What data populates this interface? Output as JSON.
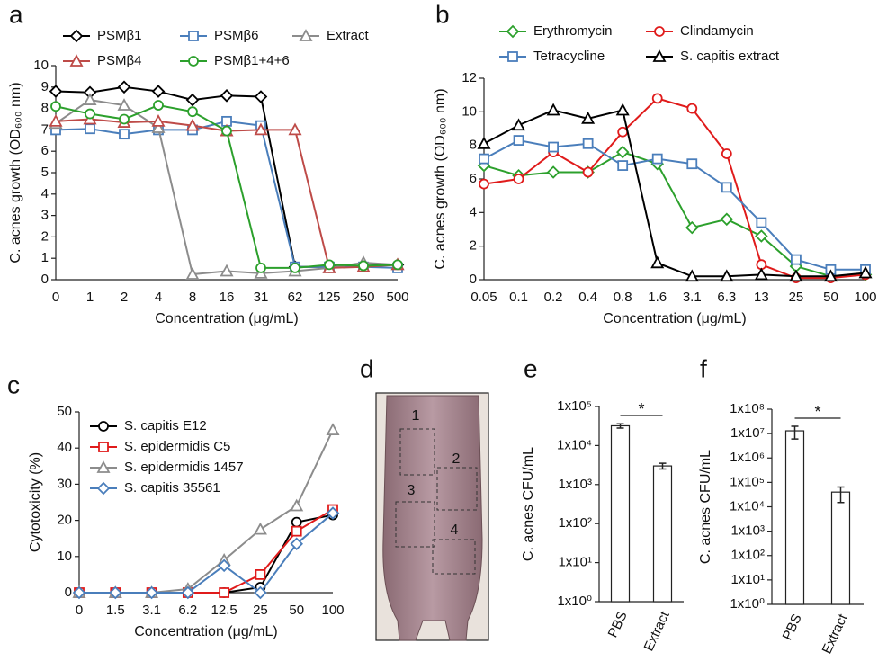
{
  "chart_data": [
    {
      "panel": "a",
      "type": "line",
      "categories": [
        "0",
        "1",
        "2",
        "4",
        "8",
        "16",
        "31",
        "62",
        "125",
        "250",
        "500"
      ],
      "x_label": "Concentration (μg/mL)",
      "y_label": "C. acnes growth (OD₆₀₀ nm)",
      "ylim": [
        0,
        10
      ],
      "yticks": [
        0,
        1,
        2,
        3,
        4,
        5,
        6,
        7,
        8,
        9,
        10
      ],
      "series": [
        {
          "name": "PSMβ1",
          "color": "#000000",
          "marker": "diamond",
          "values": [
            8.8,
            8.75,
            9.0,
            8.8,
            8.4,
            8.6,
            8.55,
            0.6,
            0.6,
            0.65,
            0.7
          ]
        },
        {
          "name": "PSMβ6",
          "color": "#4a7ebb",
          "marker": "square",
          "values": [
            7.0,
            7.05,
            6.8,
            7.0,
            7.0,
            7.4,
            7.2,
            0.6,
            0.6,
            0.6,
            0.55
          ]
        },
        {
          "name": "Extract",
          "color": "#8c8c8c",
          "marker": "triangle",
          "values": [
            7.3,
            8.4,
            8.15,
            7.1,
            0.25,
            0.4,
            0.3,
            0.4,
            0.55,
            0.8,
            0.7
          ]
        },
        {
          "name": "PSMβ4",
          "color": "#be4b48",
          "marker": "triangle",
          "values": [
            7.4,
            7.5,
            7.35,
            7.4,
            7.2,
            6.95,
            7.0,
            7.0,
            0.55,
            0.6,
            0.7
          ]
        },
        {
          "name": "PSMβ1+4+6",
          "color": "#2ca02c",
          "marker": "circle",
          "values": [
            8.1,
            7.75,
            7.5,
            8.15,
            7.85,
            6.95,
            0.55,
            0.55,
            0.7,
            0.65,
            0.7
          ]
        }
      ]
    },
    {
      "panel": "b",
      "type": "line",
      "categories": [
        "0.05",
        "0.1",
        "0.2",
        "0.4",
        "0.8",
        "1.6",
        "3.1",
        "6.3",
        "13",
        "25",
        "50",
        "100"
      ],
      "x_label": "Concentration (μg/mL)",
      "y_label": "C. acnes growth (OD₆₀₀ nm)",
      "ylim": [
        0,
        12
      ],
      "yticks": [
        0,
        2,
        4,
        6,
        8,
        10,
        12
      ],
      "series": [
        {
          "name": "Erythromycin",
          "color": "#2ca02c",
          "marker": "diamond",
          "values": [
            6.8,
            6.2,
            6.4,
            6.4,
            7.6,
            6.9,
            3.1,
            3.6,
            2.6,
            0.8,
            0.2,
            0.3
          ]
        },
        {
          "name": "Clindamycin",
          "color": "#e01b1b",
          "marker": "circle",
          "values": [
            5.7,
            6.0,
            7.6,
            6.4,
            8.8,
            10.8,
            10.2,
            7.5,
            0.9,
            0.1,
            0.1,
            0.3
          ]
        },
        {
          "name": "Tetracycline",
          "color": "#4a7ebb",
          "marker": "square",
          "values": [
            7.2,
            8.3,
            7.9,
            8.1,
            6.8,
            7.2,
            6.9,
            5.5,
            3.4,
            1.2,
            0.6,
            0.6
          ]
        },
        {
          "name": "S. capitis extract",
          "color": "#000000",
          "marker": "triangle",
          "values": [
            8.1,
            9.2,
            10.1,
            9.6,
            10.1,
            1.0,
            0.2,
            0.2,
            0.3,
            0.2,
            0.2,
            0.4
          ]
        }
      ]
    },
    {
      "panel": "c",
      "type": "line",
      "categories": [
        "0",
        "1.5",
        "3.1",
        "6.2",
        "12.5",
        "25",
        "50",
        "100"
      ],
      "x_label": "Concentration (μg/mL)",
      "y_label": "Cytotoxicity (%)",
      "ylim": [
        0,
        50
      ],
      "yticks": [
        0,
        10,
        20,
        30,
        40,
        50
      ],
      "series": [
        {
          "name": "S. capitis E12",
          "color": "#000000",
          "marker": "circle",
          "values": [
            0,
            0,
            0,
            0,
            0,
            1.5,
            19.5,
            21.5
          ]
        },
        {
          "name": "S. epidermidis C5",
          "color": "#e01b1b",
          "marker": "square",
          "values": [
            0,
            0,
            0,
            0,
            0,
            5,
            17,
            23
          ]
        },
        {
          "name": "S. epidermidis 1457",
          "color": "#8c8c8c",
          "marker": "triangle",
          "values": [
            0,
            0,
            0,
            1,
            9,
            17.5,
            24,
            45
          ]
        },
        {
          "name": "S. capitis 35561",
          "color": "#4a7ebb",
          "marker": "diamond",
          "values": [
            0,
            0,
            0,
            0,
            7.5,
            0,
            13.5,
            22
          ]
        }
      ]
    },
    {
      "panel": "d",
      "type": "image",
      "region_labels": [
        "1",
        "2",
        "3",
        "4"
      ]
    },
    {
      "panel": "e",
      "type": "bar",
      "log_scale": true,
      "color": "#ffffff",
      "categories": [
        "PBS",
        "Extract"
      ],
      "values": [
        32000,
        3000
      ],
      "errors": [
        4000,
        500
      ],
      "y_label": "C. acnes CFU/mL",
      "significance": "*",
      "ylim": [
        1,
        100000
      ],
      "yticks": [
        {
          "value": 1,
          "label": "1x10⁰"
        },
        {
          "value": 10,
          "label": "1x10¹"
        },
        {
          "value": 100,
          "label": "1x10²"
        },
        {
          "value": 1000,
          "label": "1x10³"
        },
        {
          "value": 10000,
          "label": "1x10⁴"
        },
        {
          "value": 100000,
          "label": "1x10⁵"
        }
      ]
    },
    {
      "panel": "f",
      "type": "bar",
      "log_scale": true,
      "color": "#ffffff",
      "categories": [
        "PBS",
        "Extract"
      ],
      "values": [
        13000000,
        40000
      ],
      "errors": [
        7000000,
        25000
      ],
      "y_label": "C. acnes CFU/mL",
      "significance": "*",
      "ylim": [
        1,
        100000000
      ],
      "yticks": [
        {
          "value": 1,
          "label": "1x10⁰"
        },
        {
          "value": 10,
          "label": "1x10¹"
        },
        {
          "value": 100,
          "label": "1x10²"
        },
        {
          "value": 1000,
          "label": "1x10³"
        },
        {
          "value": 10000,
          "label": "1x10⁴"
        },
        {
          "value": 100000,
          "label": "1x10⁵"
        },
        {
          "value": 1000000,
          "label": "1x10⁶"
        },
        {
          "value": 10000000,
          "label": "1x10⁷"
        },
        {
          "value": 100000000,
          "label": "1x10⁸"
        }
      ]
    }
  ]
}
